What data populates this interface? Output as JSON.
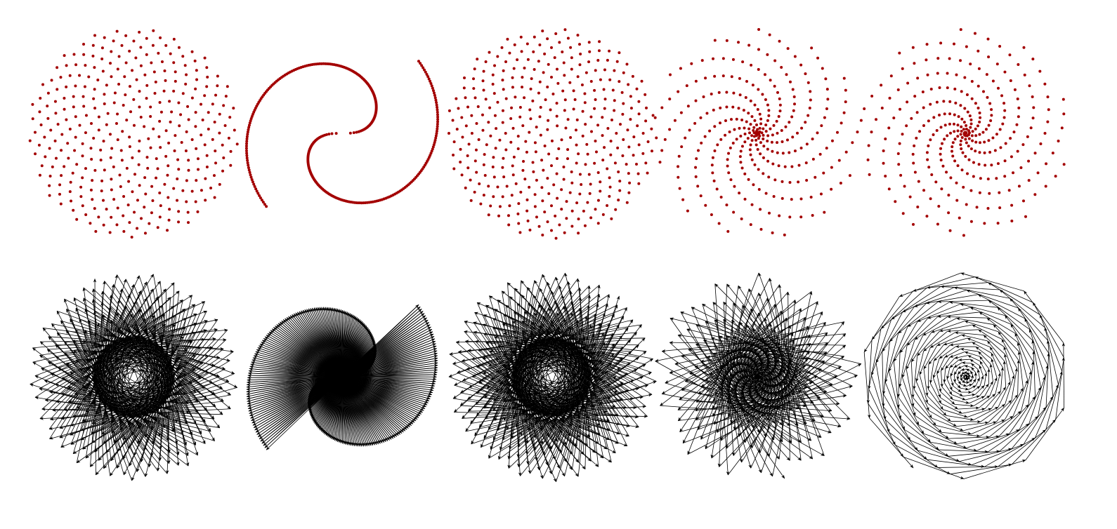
{
  "colors": {
    "background": "#ffffff",
    "dot": "#a30000",
    "arrow": "#000000"
  },
  "patterns": [
    {
      "step_angle_deg": 222.49,
      "growth": "sqrt",
      "count": 350
    },
    {
      "step_angle_deg": 180.7,
      "growth": "sqrt",
      "count": 320
    },
    {
      "step_angle_deg": 137.5,
      "growth": "sqrt",
      "count": 380
    },
    {
      "step_angle_deg": 138.95,
      "growth": "linear",
      "count": 300
    },
    {
      "step_angle_deg": 36.8,
      "growth": "linear",
      "count": 300
    }
  ]
}
